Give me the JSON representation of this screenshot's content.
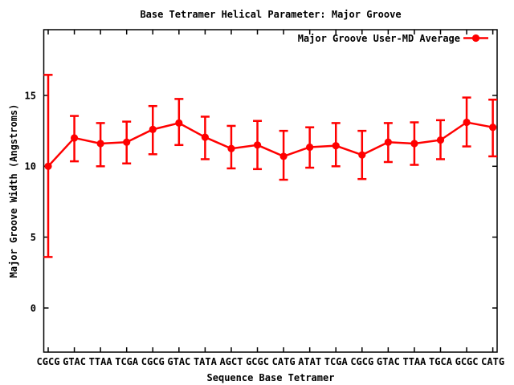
{
  "title": "Base Tetramer Helical Parameter: Major Groove",
  "legend": {
    "label": "Major Groove User-MD Average",
    "position": "top-right-inside"
  },
  "axes": {
    "y_label": "Major Groove Width (Angstroms)",
    "x_label": "Sequence Base Tetramer",
    "y_ticks": [
      0,
      5,
      10,
      15
    ]
  },
  "colors": {
    "series": "#ff0000",
    "frame": "#000000",
    "text": "#000000",
    "background": "#ffffff"
  },
  "chart_data": {
    "type": "line",
    "title": "Base Tetramer Helical Parameter: Major Groove",
    "xlabel": "Sequence Base Tetramer",
    "ylabel": "Major Groove Width (Angstroms)",
    "categories": [
      "CGCG",
      "GTAC",
      "TTAA",
      "TCGA",
      "CGCG",
      "GTAC",
      "TATA",
      "AGCT",
      "GCGC",
      "CATG",
      "ATAT",
      "TCGA",
      "CGCG",
      "GTAC",
      "TTAA",
      "TGCA",
      "GCGC",
      "CATG"
    ],
    "y_ticks": [
      0,
      5,
      10,
      15
    ],
    "ylim": [
      -3.1,
      19.6
    ],
    "grid": false,
    "error_bars": true,
    "marker": "filled-circle",
    "legend_position": "top-right",
    "series": [
      {
        "name": "Major Groove User-MD Average",
        "color": "#ff0000",
        "values": [
          10.0,
          12.0,
          11.6,
          11.7,
          12.6,
          13.05,
          12.05,
          11.25,
          11.5,
          10.7,
          11.35,
          11.45,
          10.8,
          11.7,
          11.6,
          11.85,
          13.1,
          12.75
        ],
        "error_low": [
          3.6,
          10.35,
          10.0,
          10.2,
          10.85,
          11.5,
          10.5,
          9.85,
          9.8,
          9.05,
          9.9,
          10.0,
          9.1,
          10.3,
          10.1,
          10.5,
          11.4,
          10.7
        ],
        "error_high": [
          16.45,
          13.55,
          13.05,
          13.15,
          14.25,
          14.75,
          13.5,
          12.85,
          13.2,
          12.5,
          12.75,
          13.05,
          12.5,
          13.05,
          13.1,
          13.25,
          14.85,
          14.7
        ]
      }
    ]
  }
}
